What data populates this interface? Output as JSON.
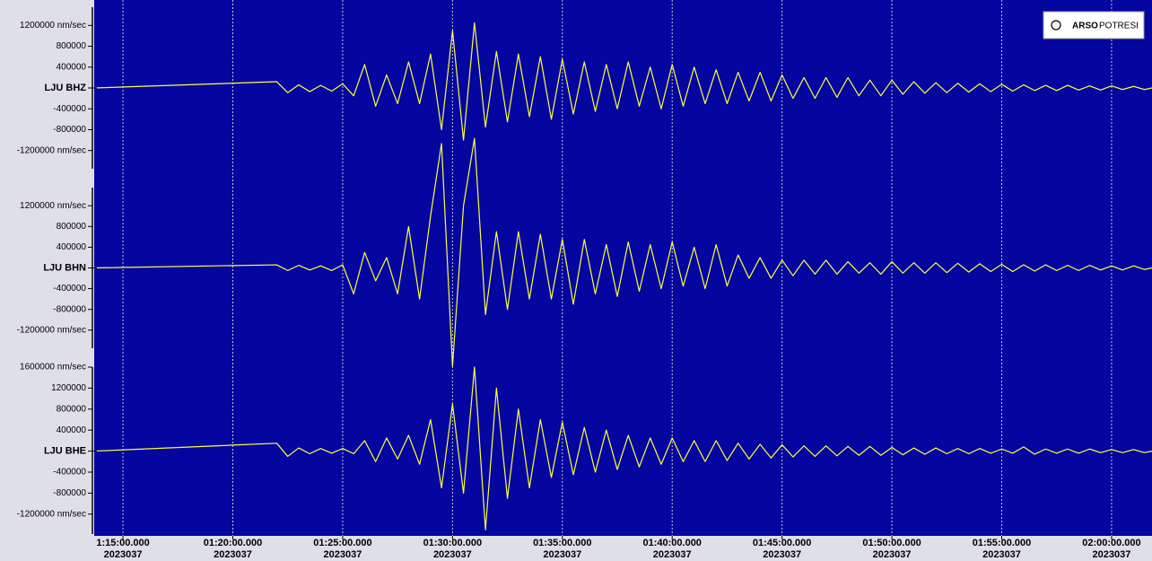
{
  "logo": {
    "bold": "ARSO",
    "text": "POTRESI"
  },
  "chart_data": [
    {
      "type": "line",
      "xlim": [
        13.69,
        61.84
      ],
      "ylim": [
        -1550000,
        1550000
      ],
      "yticks": [
        {
          "value": 1200000,
          "label": "1200000 nm/sec"
        },
        800000,
        400000,
        {
          "value": 0,
          "label": "LJU BHZ"
        },
        -400000,
        -800000,
        {
          "value": -1200000,
          "label": "-1200000 nm/sec"
        }
      ],
      "x": [
        13.69,
        22,
        22.5,
        23,
        23.5,
        24,
        24.5,
        25,
        25.5,
        26,
        26.5,
        27,
        27.5,
        28,
        28.5,
        29,
        29.5,
        30,
        30.5,
        31,
        31.5,
        32,
        32.5,
        33,
        33.5,
        34,
        34.5,
        35,
        35.5,
        36,
        36.5,
        37,
        37.5,
        38,
        38.5,
        39,
        39.5,
        40,
        40.5,
        41,
        41.5,
        42,
        42.5,
        43,
        43.5,
        44,
        44.5,
        45,
        45.5,
        46,
        46.5,
        47,
        47.5,
        48,
        48.5,
        49,
        49.5,
        50,
        50.5,
        51,
        51.5,
        52,
        52.5,
        53,
        53.5,
        54,
        54.5,
        55,
        55.5,
        56,
        56.5,
        57,
        57.5,
        58,
        58.5,
        59,
        59.5,
        60,
        60.5,
        61,
        61.5,
        61.84
      ],
      "series": [
        {
          "color": "#ffff40",
          "values": [
            0,
            120000,
            -90000,
            60000,
            -70000,
            50000,
            -60000,
            80000,
            -150000,
            450000,
            -350000,
            250000,
            -300000,
            500000,
            -300000,
            650000,
            -800000,
            1100000,
            -1000000,
            1250000,
            -750000,
            700000,
            -650000,
            650000,
            -550000,
            600000,
            -600000,
            550000,
            -500000,
            500000,
            -450000,
            450000,
            -400000,
            500000,
            -350000,
            400000,
            -400000,
            450000,
            -350000,
            400000,
            -300000,
            350000,
            -300000,
            300000,
            -250000,
            300000,
            -250000,
            250000,
            -200000,
            200000,
            -200000,
            200000,
            -180000,
            200000,
            -150000,
            150000,
            -150000,
            150000,
            -120000,
            120000,
            -100000,
            100000,
            -90000,
            90000,
            -80000,
            80000,
            -70000,
            70000,
            -60000,
            60000,
            -50000,
            50000,
            -50000,
            50000,
            -40000,
            40000,
            -40000,
            40000,
            -30000,
            30000,
            -30000,
            0
          ]
        }
      ]
    },
    {
      "type": "line",
      "xlim": [
        13.69,
        61.84
      ],
      "ylim": [
        -1550000,
        1550000
      ],
      "yticks": [
        {
          "value": 1200000,
          "label": "1200000 nm/sec"
        },
        800000,
        400000,
        {
          "value": 0,
          "label": "LJU BHN"
        },
        -400000,
        -800000,
        {
          "value": -1200000,
          "label": "-1200000 nm/sec"
        }
      ],
      "x": [
        13.69,
        22,
        22.5,
        23,
        23.5,
        24,
        24.5,
        25,
        25.5,
        26,
        26.5,
        27,
        27.5,
        28,
        28.5,
        29,
        29.5,
        30,
        30.5,
        31,
        31.5,
        32,
        32.5,
        33,
        33.5,
        34,
        34.5,
        35,
        35.5,
        36,
        36.5,
        37,
        37.5,
        38,
        38.5,
        39,
        39.5,
        40,
        40.5,
        41,
        41.5,
        42,
        42.5,
        43,
        43.5,
        44,
        44.5,
        45,
        45.5,
        46,
        46.5,
        47,
        47.5,
        48,
        48.5,
        49,
        49.5,
        50,
        50.5,
        51,
        51.5,
        52,
        52.5,
        53,
        53.5,
        54,
        54.5,
        55,
        55.5,
        56,
        56.5,
        57,
        57.5,
        58,
        58.5,
        59,
        59.5,
        60,
        60.5,
        61,
        61.5,
        61.84
      ],
      "series": [
        {
          "color": "#ffff40",
          "values": [
            0,
            60000,
            -50000,
            50000,
            -40000,
            40000,
            -50000,
            60000,
            -500000,
            300000,
            -250000,
            200000,
            -500000,
            800000,
            -600000,
            1000000,
            2400000,
            -1900000,
            1200000,
            2500000,
            -900000,
            700000,
            -800000,
            700000,
            -600000,
            650000,
            -600000,
            550000,
            -700000,
            550000,
            -500000,
            450000,
            -550000,
            500000,
            -450000,
            450000,
            -400000,
            500000,
            -350000,
            400000,
            -400000,
            450000,
            -350000,
            250000,
            -200000,
            200000,
            -200000,
            150000,
            -150000,
            150000,
            -120000,
            150000,
            -120000,
            120000,
            -100000,
            100000,
            -120000,
            120000,
            -100000,
            100000,
            -100000,
            100000,
            -90000,
            90000,
            -80000,
            80000,
            -70000,
            70000,
            -70000,
            60000,
            -60000,
            60000,
            -50000,
            50000,
            -50000,
            50000,
            -40000,
            40000,
            -40000,
            40000,
            -30000,
            0
          ]
        }
      ]
    },
    {
      "type": "line",
      "xlim": [
        13.69,
        61.84
      ],
      "ylim": [
        -1580000,
        1600000
      ],
      "yticks": [
        {
          "value": 1600000,
          "label": "1600000 nm/sec"
        },
        1200000,
        800000,
        400000,
        {
          "value": 0,
          "label": "LJU BHE"
        },
        -400000,
        -800000,
        {
          "value": -1200000,
          "label": "-1200000 nm/sec"
        }
      ],
      "xticks": [
        {
          "value": 15,
          "label": "1:15:00.000",
          "date": "2023037"
        },
        {
          "value": 20,
          "label": "01:20:00.000",
          "date": "2023037"
        },
        {
          "value": 25,
          "label": "01:25:00.000",
          "date": "2023037"
        },
        {
          "value": 30,
          "label": "01:30:00.000",
          "date": "2023037"
        },
        {
          "value": 35,
          "label": "01:35:00.000",
          "date": "2023037"
        },
        {
          "value": 40,
          "label": "01:40:00.000",
          "date": "2023037"
        },
        {
          "value": 45,
          "label": "01:45:00.000",
          "date": "2023037"
        },
        {
          "value": 50,
          "label": "01:50:00.000",
          "date": "2023037"
        },
        {
          "value": 55,
          "label": "01:55:00.000",
          "date": "2023037"
        },
        {
          "value": 60,
          "label": "02:00:00.000",
          "date": "2023037"
        }
      ],
      "x": [
        13.69,
        22,
        22.5,
        23,
        23.5,
        24,
        24.5,
        25,
        25.5,
        26,
        26.5,
        27,
        27.5,
        28,
        28.5,
        29,
        29.5,
        30,
        30.5,
        31,
        31.5,
        32,
        32.5,
        33,
        33.5,
        34,
        34.5,
        35,
        35.5,
        36,
        36.5,
        37,
        37.5,
        38,
        38.5,
        39,
        39.5,
        40,
        40.5,
        41,
        41.5,
        42,
        42.5,
        43,
        43.5,
        44,
        44.5,
        45,
        45.5,
        46,
        46.5,
        47,
        47.5,
        48,
        48.5,
        49,
        49.5,
        50,
        50.5,
        51,
        51.5,
        52,
        52.5,
        53,
        53.5,
        54,
        54.5,
        55,
        55.5,
        56,
        56.5,
        57,
        57.5,
        58,
        58.5,
        59,
        59.5,
        60,
        60.5,
        61,
        61.5,
        61.84
      ],
      "series": [
        {
          "color": "#ffff40",
          "values": [
            0,
            150000,
            -100000,
            60000,
            -50000,
            50000,
            -40000,
            50000,
            -50000,
            200000,
            -200000,
            250000,
            -150000,
            300000,
            -250000,
            600000,
            -700000,
            900000,
            -800000,
            1600000,
            -1500000,
            1200000,
            -900000,
            800000,
            -700000,
            600000,
            -500000,
            550000,
            -450000,
            450000,
            -400000,
            400000,
            -350000,
            300000,
            -300000,
            250000,
            -250000,
            250000,
            -200000,
            200000,
            -200000,
            200000,
            -180000,
            150000,
            -150000,
            130000,
            -130000,
            120000,
            -110000,
            100000,
            -100000,
            100000,
            -90000,
            90000,
            -80000,
            90000,
            -80000,
            70000,
            -70000,
            60000,
            -60000,
            60000,
            -50000,
            50000,
            -50000,
            50000,
            -40000,
            40000,
            -40000,
            80000,
            -60000,
            40000,
            -40000,
            40000,
            -40000,
            40000,
            -30000,
            30000,
            -30000,
            30000,
            -30000,
            0
          ]
        }
      ]
    }
  ]
}
